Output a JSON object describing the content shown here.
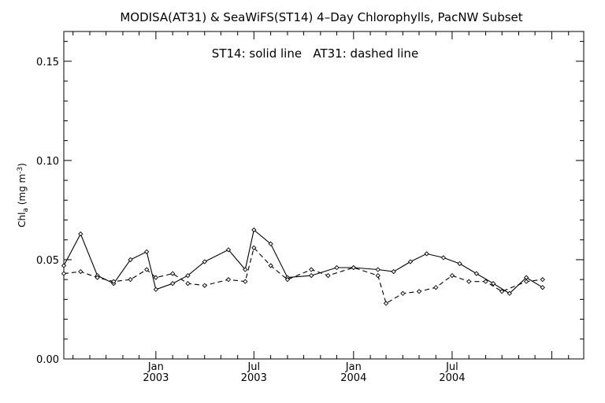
{
  "chart_data": {
    "type": "line",
    "title": "MODISA(AT31) & SeaWiFS(ST14) 4–Day Chlorophylls, PacNW Subset",
    "annotation": "ST14: solid line   AT31: dashed line",
    "ylabel_main": "Chl",
    "ylabel_sub": "a",
    "ylabel_unit": " (mg m",
    "ylabel_sup": "-3",
    "ylabel_close": ")",
    "ylim": [
      0.0,
      0.165
    ],
    "y_ticks": [
      {
        "value": 0.0,
        "label": "0.00"
      },
      {
        "value": 0.05,
        "label": "0.05"
      },
      {
        "value": 0.1,
        "label": "0.10"
      },
      {
        "value": 0.15,
        "label": "0.15"
      }
    ],
    "xlim": [
      "2002-07-15",
      "2005-03-01"
    ],
    "x_ticks": [
      {
        "date": "2003-01-01",
        "month": "Jan",
        "year": "2003"
      },
      {
        "date": "2003-07-01",
        "month": "Jul",
        "year": "2003"
      },
      {
        "date": "2004-01-01",
        "month": "Jan",
        "year": "2004"
      },
      {
        "date": "2004-07-01",
        "month": "Jul",
        "year": "2004"
      }
    ],
    "grid": false,
    "series": [
      {
        "name": "ST14",
        "line_style": "solid",
        "points": [
          {
            "x": "2002-07-15",
            "y": 0.047
          },
          {
            "x": "2002-08-15",
            "y": 0.063
          },
          {
            "x": "2002-09-15",
            "y": 0.042
          },
          {
            "x": "2002-10-15",
            "y": 0.038
          },
          {
            "x": "2002-11-15",
            "y": 0.05
          },
          {
            "x": "2002-12-15",
            "y": 0.054
          },
          {
            "x": "2003-01-01",
            "y": 0.035
          },
          {
            "x": "2003-02-01",
            "y": 0.038
          },
          {
            "x": "2003-03-01",
            "y": 0.042
          },
          {
            "x": "2003-04-01",
            "y": 0.049
          },
          {
            "x": "2003-05-15",
            "y": 0.055
          },
          {
            "x": "2003-06-15",
            "y": 0.045
          },
          {
            "x": "2003-07-01",
            "y": 0.065
          },
          {
            "x": "2003-08-01",
            "y": 0.058
          },
          {
            "x": "2003-09-01",
            "y": 0.041
          },
          {
            "x": "2003-10-15",
            "y": 0.042
          },
          {
            "x": "2003-12-01",
            "y": 0.046
          },
          {
            "x": "2004-01-01",
            "y": 0.046
          },
          {
            "x": "2004-02-15",
            "y": 0.045
          },
          {
            "x": "2004-03-15",
            "y": 0.044
          },
          {
            "x": "2004-04-15",
            "y": 0.049
          },
          {
            "x": "2004-05-15",
            "y": 0.053
          },
          {
            "x": "2004-06-15",
            "y": 0.051
          },
          {
            "x": "2004-07-15",
            "y": 0.048
          },
          {
            "x": "2004-08-15",
            "y": 0.043
          },
          {
            "x": "2004-09-15",
            "y": 0.038
          },
          {
            "x": "2004-10-15",
            "y": 0.033
          },
          {
            "x": "2004-11-15",
            "y": 0.041
          },
          {
            "x": "2004-12-15",
            "y": 0.036
          }
        ]
      },
      {
        "name": "AT31",
        "line_style": "dashed",
        "points": [
          {
            "x": "2002-07-15",
            "y": 0.043
          },
          {
            "x": "2002-08-15",
            "y": 0.044
          },
          {
            "x": "2002-09-15",
            "y": 0.041
          },
          {
            "x": "2002-10-15",
            "y": 0.039
          },
          {
            "x": "2002-11-15",
            "y": 0.04
          },
          {
            "x": "2002-12-15",
            "y": 0.045
          },
          {
            "x": "2003-01-01",
            "y": 0.041
          },
          {
            "x": "2003-02-01",
            "y": 0.043
          },
          {
            "x": "2003-03-01",
            "y": 0.038
          },
          {
            "x": "2003-04-01",
            "y": 0.037
          },
          {
            "x": "2003-05-15",
            "y": 0.04
          },
          {
            "x": "2003-06-15",
            "y": 0.039
          },
          {
            "x": "2003-07-01",
            "y": 0.056
          },
          {
            "x": "2003-08-01",
            "y": 0.047
          },
          {
            "x": "2003-09-01",
            "y": 0.04
          },
          {
            "x": "2003-10-15",
            "y": 0.045
          },
          {
            "x": "2003-11-15",
            "y": 0.042
          },
          {
            "x": "2004-01-01",
            "y": 0.046
          },
          {
            "x": "2004-02-15",
            "y": 0.042
          },
          {
            "x": "2004-03-01",
            "y": 0.028
          },
          {
            "x": "2004-04-01",
            "y": 0.033
          },
          {
            "x": "2004-05-01",
            "y": 0.034
          },
          {
            "x": "2004-06-01",
            "y": 0.036
          },
          {
            "x": "2004-07-01",
            "y": 0.042
          },
          {
            "x": "2004-08-01",
            "y": 0.039
          },
          {
            "x": "2004-09-01",
            "y": 0.039
          },
          {
            "x": "2004-10-01",
            "y": 0.034
          },
          {
            "x": "2004-11-15",
            "y": 0.039
          },
          {
            "x": "2004-12-15",
            "y": 0.04
          }
        ]
      }
    ]
  }
}
